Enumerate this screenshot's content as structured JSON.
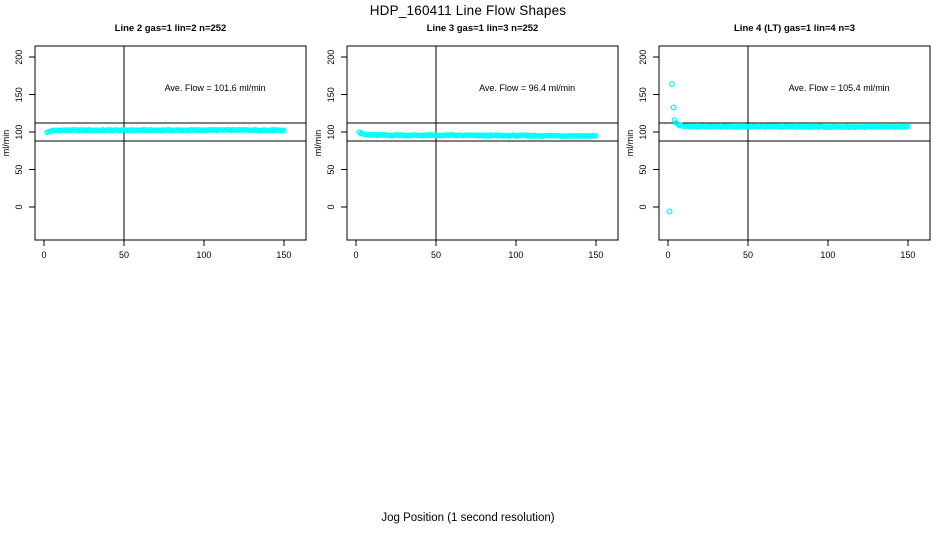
{
  "figure": {
    "title": "HDP_160411  Line Flow Shapes",
    "xlabel": "Jog Position (1 second resolution)"
  },
  "style": {
    "point_color": "#00FFFF",
    "axis_color": "#000000",
    "background": "#FFFFFF"
  },
  "chart_data": [
    {
      "type": "scatter",
      "title": "Line 2 gas=1 lin=2 n=252",
      "ylabel": "ml/min",
      "annotation": "Ave. Flow =  101.6  ml/min",
      "ave_flow_ml_min": 101.6,
      "n_points": 252,
      "x_ticks": [
        0,
        50,
        100,
        150
      ],
      "y_ticks": [
        0,
        50,
        100,
        150,
        200
      ],
      "xlim": [
        -5.6,
        163.8
      ],
      "ylim": [
        -44,
        215
      ],
      "ref_hlines": [
        112,
        88
      ],
      "ref_vlines": [
        50
      ],
      "series": {
        "x_start": 2,
        "x_end": 150,
        "x_step": 1,
        "profile_keypoints": [
          [
            2,
            99.5
          ],
          [
            4,
            101.5
          ],
          [
            8,
            102.5
          ],
          [
            150,
            102.8
          ]
        ],
        "jitter": 0.7
      },
      "outliers": [],
      "annotation_pos": [
        107,
        155
      ]
    },
    {
      "type": "scatter",
      "title": "Line 3 gas=1 lin=3 n=252",
      "ylabel": "ml/min",
      "annotation": "Ave. Flow =  96.4  ml/min",
      "ave_flow_ml_min": 96.4,
      "n_points": 252,
      "x_ticks": [
        0,
        50,
        100,
        150
      ],
      "y_ticks": [
        0,
        50,
        100,
        150,
        200
      ],
      "xlim": [
        -5.6,
        163.8
      ],
      "ylim": [
        -44,
        215
      ],
      "ref_hlines": [
        112,
        88
      ],
      "ref_vlines": [
        50
      ],
      "series": {
        "x_start": 2,
        "x_end": 150,
        "x_step": 1,
        "profile_keypoints": [
          [
            2,
            100.5
          ],
          [
            3,
            98.5
          ],
          [
            6,
            96.5
          ],
          [
            12,
            96
          ],
          [
            80,
            95.5
          ],
          [
            150,
            95
          ]
        ],
        "jitter": 0.8
      },
      "outliers": [],
      "annotation_pos": [
        107,
        155
      ]
    },
    {
      "type": "scatter",
      "title": "Line 4 (LT) gas=1 lin=4 n=3",
      "ylabel": "ml/min",
      "annotation": "Ave. Flow =  105.4  ml/min",
      "ave_flow_ml_min": 105.4,
      "n_points": 3,
      "x_ticks": [
        0,
        50,
        100,
        150
      ],
      "y_ticks": [
        0,
        50,
        100,
        150,
        200
      ],
      "xlim": [
        -5.6,
        163.8
      ],
      "ylim": [
        -44,
        215
      ],
      "ref_hlines": [
        112,
        88
      ],
      "ref_vlines": [
        50
      ],
      "series": {
        "x_start": 4,
        "x_end": 150,
        "x_step": 1,
        "profile_keypoints": [
          [
            4,
            116
          ],
          [
            5,
            112
          ],
          [
            7,
            109.5
          ],
          [
            10,
            108
          ],
          [
            20,
            107.5
          ],
          [
            150,
            106.8
          ]
        ],
        "jitter": 0.6
      },
      "outliers": [
        [
          1,
          -6
        ],
        [
          2.5,
          164
        ],
        [
          3.5,
          133
        ]
      ],
      "annotation_pos": [
        107,
        155
      ]
    }
  ]
}
